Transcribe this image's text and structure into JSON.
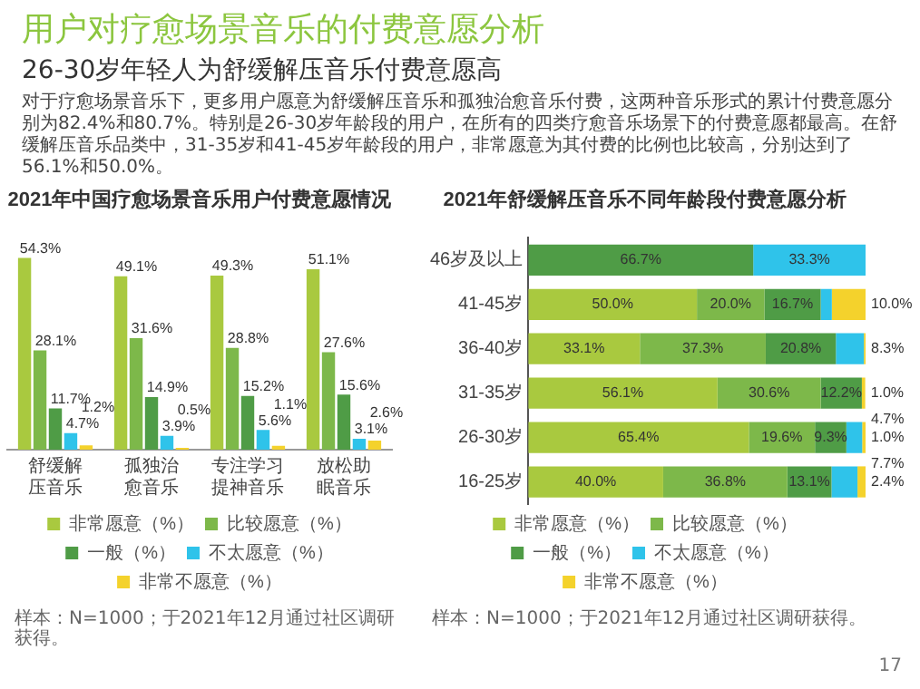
{
  "chart_data": [
    {
      "type": "other",
      "title": "用户对疗愈场景音乐的付费意愿分析",
      "subtitle": "26-30岁年轻人为舒缓解压音乐付费意愿高",
      "annotations": [
        "对于疗愈场景音乐下，更多用户愿意为舒缓解压音乐和孤独治愈音乐付费，这两种音乐形式的累计付费意愿分别为82.4%和80.7%。特别是26-30岁年龄段的用户，在所有的四类疗愈音乐场景下的付费意愿都最高。在舒缓解压音乐品类中，31-35岁和41-45岁年龄段的用户，非常愿意为其付费的比例也比较高，分别达到了56.1%和50.0%。",
        "17"
      ]
    },
    {
      "type": "bar",
      "title": "2021年中国疗愈场景音乐用户付费意愿情况",
      "categories": [
        "舒缓解压音乐",
        "孤独治愈音乐",
        "专注学习提神音乐",
        "放松助眠音乐"
      ],
      "legend": "bottom",
      "grid": false,
      "annotations": [
        "样本：N=1000；于2021年12月通过社区调研获得。"
      ],
      "series": [
        {
          "name": "非常愿意（%）",
          "color": "#a9c93f",
          "values": [
            54.3,
            49.1,
            49.3,
            51.1
          ],
          "value_labels": [
            "54.3%",
            "49.1%",
            "49.3%",
            "51.1%"
          ]
        },
        {
          "name": "比较愿意（%）",
          "color": "#7db84a",
          "values": [
            28.1,
            31.6,
            28.8,
            27.6
          ],
          "value_labels": [
            "28.1%",
            "31.6%",
            "28.8%",
            "27.6%"
          ]
        },
        {
          "name": "一般（%）",
          "color": "#4f9c46",
          "values": [
            11.7,
            14.9,
            15.2,
            15.6
          ],
          "value_labels": [
            "11.7%",
            "14.9%",
            "15.2%",
            "15.6%"
          ]
        },
        {
          "name": "不太愿意（%）",
          "color": "#2fc3ea",
          "values": [
            4.7,
            3.9,
            5.6,
            3.1
          ],
          "value_labels": [
            "4.7%",
            "3.9%",
            "5.6%",
            "3.1%"
          ]
        },
        {
          "name": "非常不愿意（%）",
          "color": "#f4d22c",
          "values": [
            1.2,
            0.5,
            1.1,
            2.6
          ],
          "value_labels": [
            "1.2%",
            "0.5%",
            "1.1%",
            "2.6%"
          ]
        }
      ]
    },
    {
      "type": "bar",
      "title": "2021年舒缓解压音乐不同年龄段付费意愿分析",
      "orientation": "horizontal",
      "stacked": true,
      "categories": [
        "46岁及以上",
        "41-45岁",
        "36-40岁",
        "31-35岁",
        "26-30岁",
        "16-25岁"
      ],
      "legend": "bottom",
      "grid": false,
      "annotations": [
        "样本：N=1000；于2021年12月通过社区调研获得。"
      ],
      "series": [
        {
          "name": "非常愿意（%）",
          "color": "#a9c93f",
          "values": [
            null,
            50.0,
            33.1,
            56.1,
            65.4,
            40.0
          ],
          "value_labels": [
            null,
            "50.0%",
            "33.1%",
            "56.1%",
            "65.4%",
            "40.0%"
          ]
        },
        {
          "name": "比较愿意（%）",
          "color": "#7db84a",
          "values": [
            null,
            20.0,
            37.3,
            30.6,
            19.6,
            36.8
          ],
          "value_labels": [
            null,
            "20.0%",
            "37.3%",
            "30.6%",
            "19.6%",
            "36.8%"
          ]
        },
        {
          "name": "一般（%）",
          "color": "#4f9c46",
          "values": [
            66.7,
            16.7,
            20.8,
            12.2,
            9.3,
            13.1
          ],
          "value_labels": [
            "66.7%",
            "16.7%",
            "20.8%",
            "12.2%",
            "9.3%",
            "13.1%"
          ]
        },
        {
          "name": "不太愿意（%）",
          "color": "#2fc3ea",
          "values": [
            33.3,
            3.3,
            8.3,
            null,
            4.7,
            7.7
          ],
          "value_labels": [
            "33.3%",
            null,
            "8.3%",
            null,
            "4.7%",
            "7.7%"
          ]
        },
        {
          "name": "非常不愿意（%）",
          "color": "#f4d22c",
          "values": [
            null,
            10.0,
            0.5,
            1.0,
            1.0,
            2.4
          ],
          "value_labels": [
            null,
            "10.0%",
            null,
            "1.0%",
            "1.0%",
            "2.4%"
          ]
        }
      ]
    }
  ]
}
